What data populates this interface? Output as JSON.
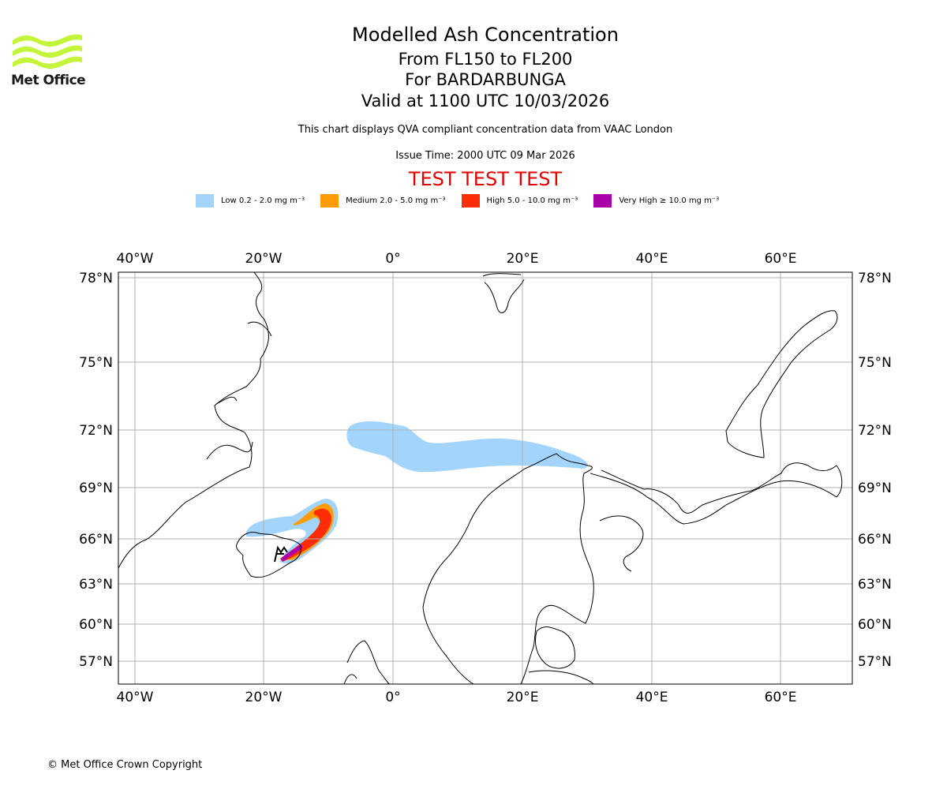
{
  "brand": {
    "name": "Met Office"
  },
  "header": {
    "title": "Modelled Ash Concentration",
    "flight_levels": "From FL150 to FL200",
    "volcano": "For BARDARBUNGA",
    "valid": "Valid at 1100 UTC 10/03/2026",
    "description": "This chart displays QVA compliant concentration data from VAAC London",
    "issue_time": "Issue Time: 2000 UTC 09 Mar 2026",
    "test_banner": "TEST TEST TEST"
  },
  "legend": [
    {
      "label": "Low 0.2 - 2.0 mg m⁻³",
      "color": "#a3d4fc"
    },
    {
      "label": "Medium 2.0 - 5.0 mg m⁻³",
      "color": "#ff9b05"
    },
    {
      "label": "High 5.0 - 10.0 mg m⁻³",
      "color": "#ff2c05"
    },
    {
      "label": "Very High  ≥  10.0 mg m⁻³",
      "color": "#aa00aa"
    }
  ],
  "map": {
    "longitude_ticks": [
      "40°W",
      "20°W",
      "0°",
      "20°E",
      "40°E",
      "60°E"
    ],
    "latitude_ticks": [
      "78°N",
      "75°N",
      "72°N",
      "69°N",
      "66°N",
      "63°N",
      "60°N",
      "57°N"
    ],
    "colors": {
      "land_line": "#000000",
      "grid": "#b0b0b0"
    }
  },
  "footer": {
    "copyright": "© Met Office Crown Copyright"
  }
}
